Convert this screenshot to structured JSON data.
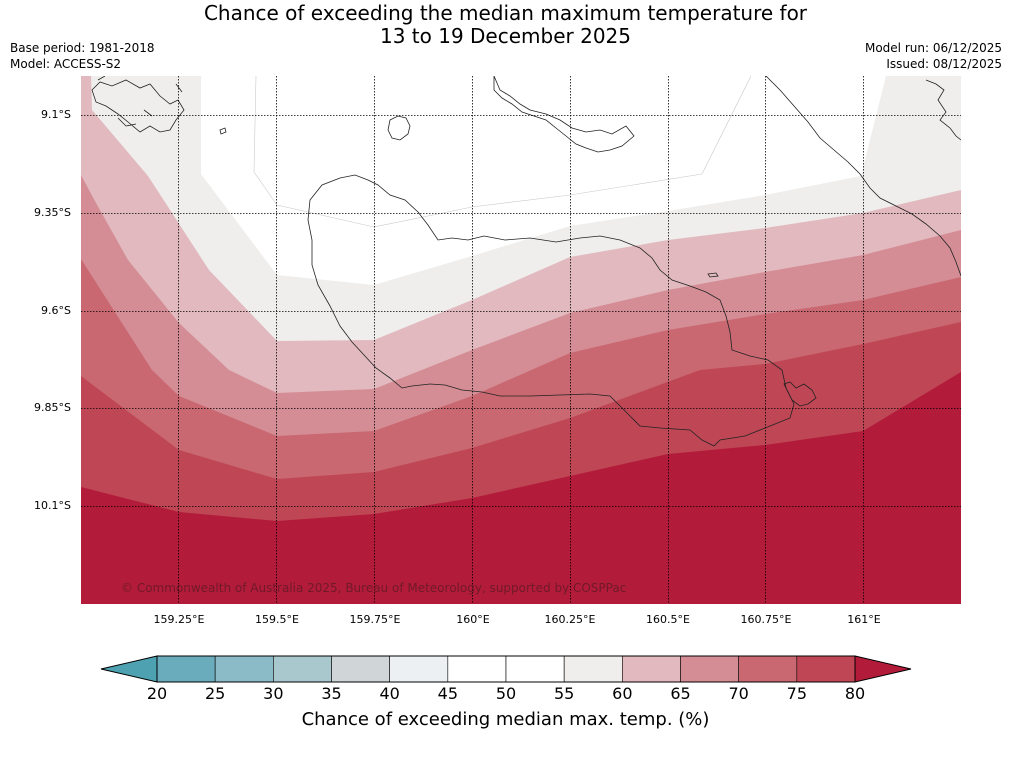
{
  "title": {
    "line1": "Chance of exceeding the median maximum temperature for",
    "line2": "13 to 19 December 2025"
  },
  "meta": {
    "base_period": "Base period: 1981-2018",
    "model": "Model: ACCESS-S2",
    "model_run": "Model run: 06/12/2025",
    "issued": "Issued: 08/12/2025"
  },
  "axes": {
    "lat_labels": [
      "9.1°S",
      "9.35°S",
      "9.6°S",
      "9.85°S",
      "10.1°S"
    ],
    "lon_labels": [
      "159.25°E",
      "159.5°E",
      "159.75°E",
      "160°E",
      "160.25°E",
      "160.5°E",
      "160.75°E",
      "161°E"
    ]
  },
  "copyright": "© Commonwealth of Australia 2025, Bureau of Meteorology, supported by COSPPac",
  "colorbar": {
    "title": "Chance of exceeding median max. temp. (%)",
    "ticks": [
      "20",
      "25",
      "30",
      "35",
      "40",
      "45",
      "50",
      "55",
      "60",
      "65",
      "70",
      "75",
      "80"
    ],
    "colors": [
      "#6aacbb",
      "#8abbc6",
      "#a9c8ce",
      "#d0d6d8",
      "#ecf0f2",
      "#ffffff",
      "#ffffff",
      "#efeeed",
      "#e1b9be",
      "#d48d95",
      "#c96871",
      "#bf4755"
    ],
    "under_color": "#4da1b1",
    "over_color": "#b31b3a"
  },
  "map_colors": {
    "c55": "#ffffff",
    "c60": "#efeeed",
    "c65": "#e1b9be",
    "c70": "#d48d95",
    "c75": "#c96871",
    "c80": "#bf4755",
    "c85": "#b31b3a"
  }
}
